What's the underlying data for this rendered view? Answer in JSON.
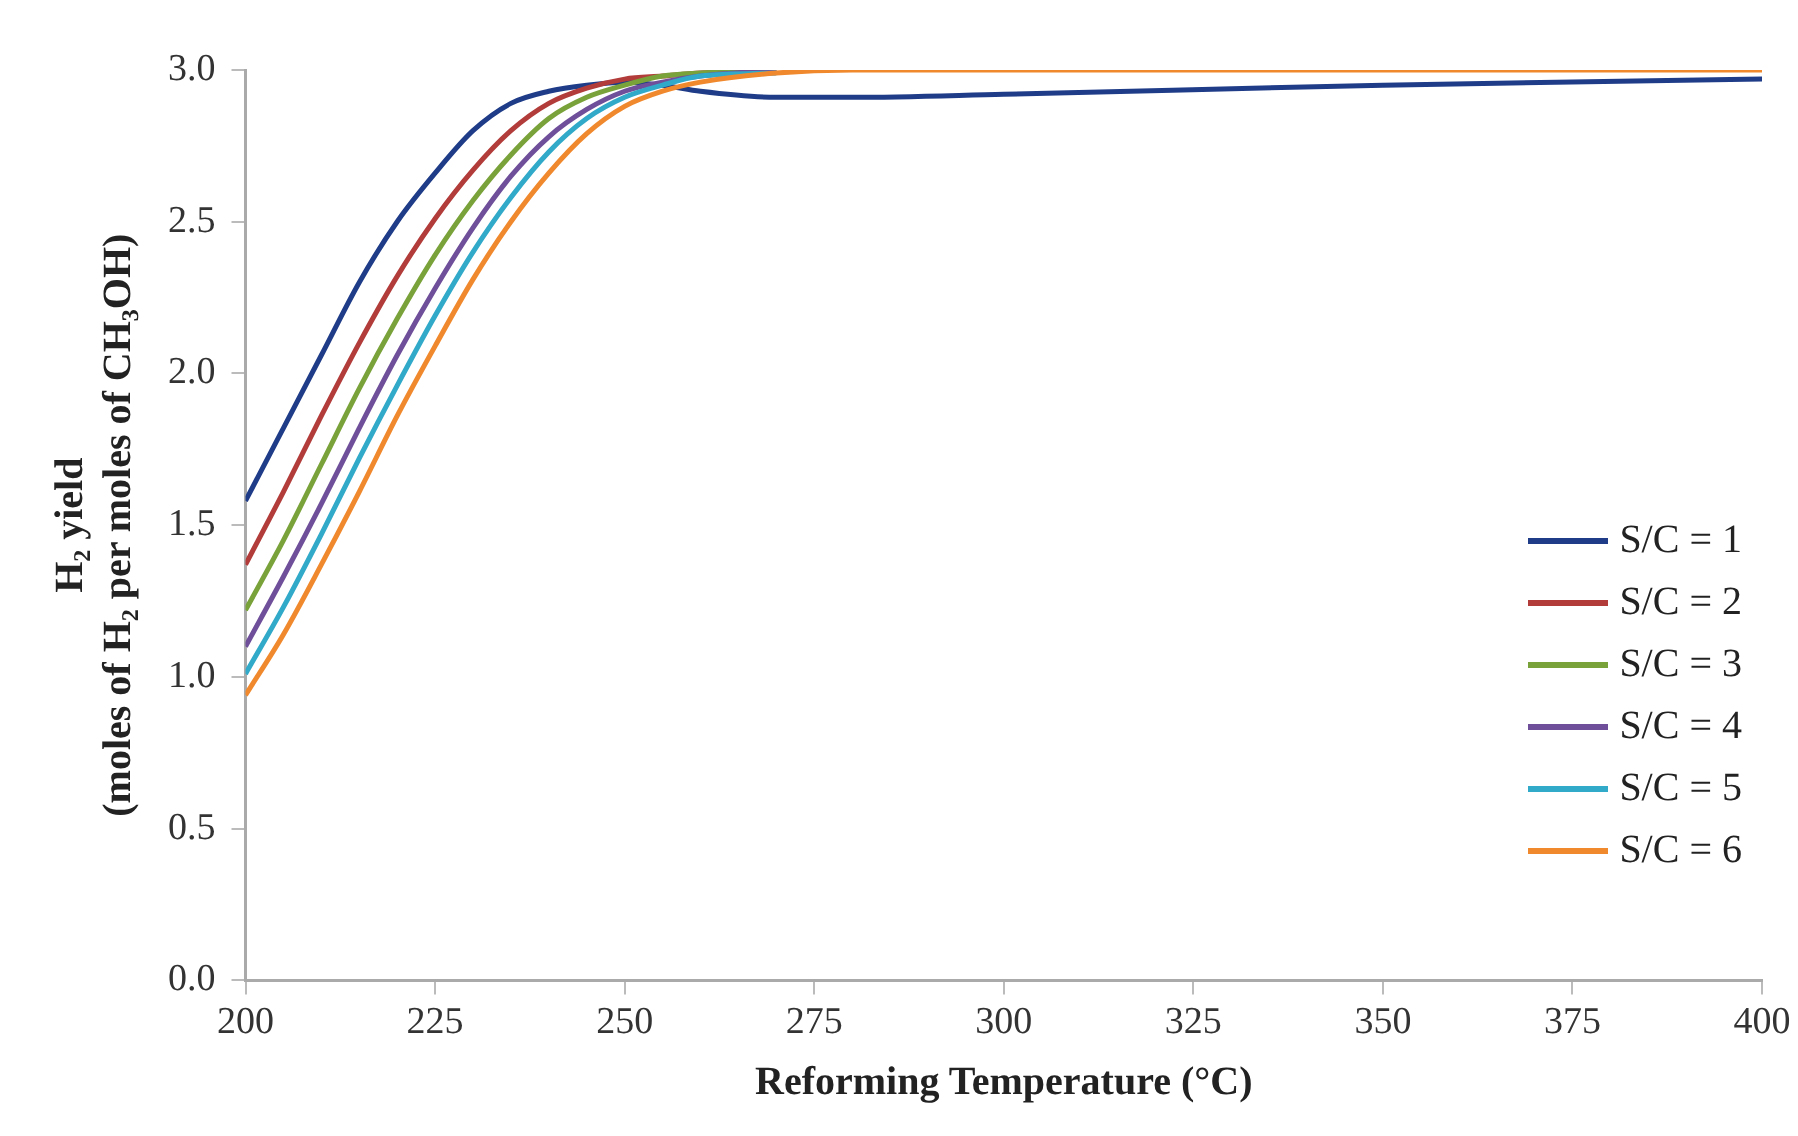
{
  "chart_data": {
    "type": "line",
    "xlabel": "Reforming Temperature (°C)",
    "ylabel": "H₂ yield\n(moles of H₂ per moles of CH₃OH)",
    "x": [
      200,
      205,
      210,
      215,
      220,
      225,
      230,
      235,
      240,
      245,
      250,
      255,
      260,
      270,
      280,
      300,
      350,
      400
    ],
    "series": [
      {
        "name": "S/C = 1",
        "color": "#1f3c88",
        "values": [
          1.58,
          1.82,
          2.06,
          2.3,
          2.5,
          2.66,
          2.8,
          2.89,
          2.93,
          2.95,
          2.96,
          2.95,
          2.93,
          2.91,
          2.91,
          2.92,
          2.95,
          2.97
        ]
      },
      {
        "name": "S/C = 2",
        "color": "#b23c3a",
        "values": [
          1.37,
          1.61,
          1.86,
          2.1,
          2.32,
          2.51,
          2.67,
          2.8,
          2.89,
          2.94,
          2.97,
          2.98,
          2.99,
          3.0,
          null,
          null,
          null,
          null
        ]
      },
      {
        "name": "S/C = 3",
        "color": "#7aa23a",
        "values": [
          1.22,
          1.45,
          1.7,
          1.95,
          2.18,
          2.39,
          2.57,
          2.72,
          2.84,
          2.91,
          2.95,
          2.98,
          2.99,
          3.0,
          null,
          null,
          null,
          null
        ]
      },
      {
        "name": "S/C = 4",
        "color": "#6f4f9a",
        "values": [
          1.1,
          1.33,
          1.57,
          1.82,
          2.06,
          2.28,
          2.48,
          2.65,
          2.78,
          2.87,
          2.93,
          2.96,
          2.98,
          3.0,
          null,
          null,
          null,
          null
        ]
      },
      {
        "name": "S/C = 5",
        "color": "#31a9c8",
        "values": [
          1.01,
          1.23,
          1.47,
          1.72,
          1.96,
          2.19,
          2.4,
          2.58,
          2.73,
          2.84,
          2.91,
          2.95,
          2.98,
          2.99,
          null,
          null,
          null,
          null
        ]
      },
      {
        "name": "S/C = 6",
        "color": "#f0892e",
        "values": [
          0.94,
          1.14,
          1.37,
          1.61,
          1.86,
          2.09,
          2.31,
          2.5,
          2.66,
          2.79,
          2.88,
          2.93,
          2.96,
          2.99,
          3.0,
          3.0,
          3.0,
          3.0
        ]
      }
    ],
    "xlim": [
      200,
      400
    ],
    "xticks": [
      200,
      225,
      250,
      275,
      300,
      325,
      350,
      375,
      400
    ],
    "ylim": [
      0,
      3
    ],
    "yticks": [
      {
        "value": 0,
        "label": "0.0"
      },
      {
        "value": 0.5,
        "label": "0.5"
      },
      {
        "value": 1,
        "label": "1.0"
      },
      {
        "value": 1.5,
        "label": "1.5"
      },
      {
        "value": 2,
        "label": "2.0"
      },
      {
        "value": 2.5,
        "label": "2.5"
      },
      {
        "value": 3,
        "label": "3.0"
      }
    ],
    "grid": false,
    "legend": "right",
    "marker": "none",
    "line_style": "solid"
  }
}
